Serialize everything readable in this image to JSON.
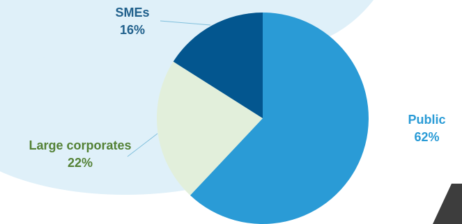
{
  "colors": {
    "backdrop": "#dff0f9",
    "connector": "#7fbfdc",
    "corner_mark": "#3d3d3d"
  },
  "chart_data": {
    "type": "pie",
    "title": "",
    "start_angle_deg": 0,
    "direction": "clockwise",
    "legend": "none",
    "slices": [
      {
        "label": "Public",
        "value": 62,
        "value_label": "62%",
        "color": "#2a9bd6",
        "label_color": "#2a9bd6"
      },
      {
        "label": "Large corporates",
        "value": 22,
        "value_label": "22%",
        "color": "#e2efdb",
        "label_color": "#538135"
      },
      {
        "label": "SMEs",
        "value": 16,
        "value_label": "16%",
        "color": "#03568f",
        "label_color": "#1f5f8b"
      }
    ]
  }
}
